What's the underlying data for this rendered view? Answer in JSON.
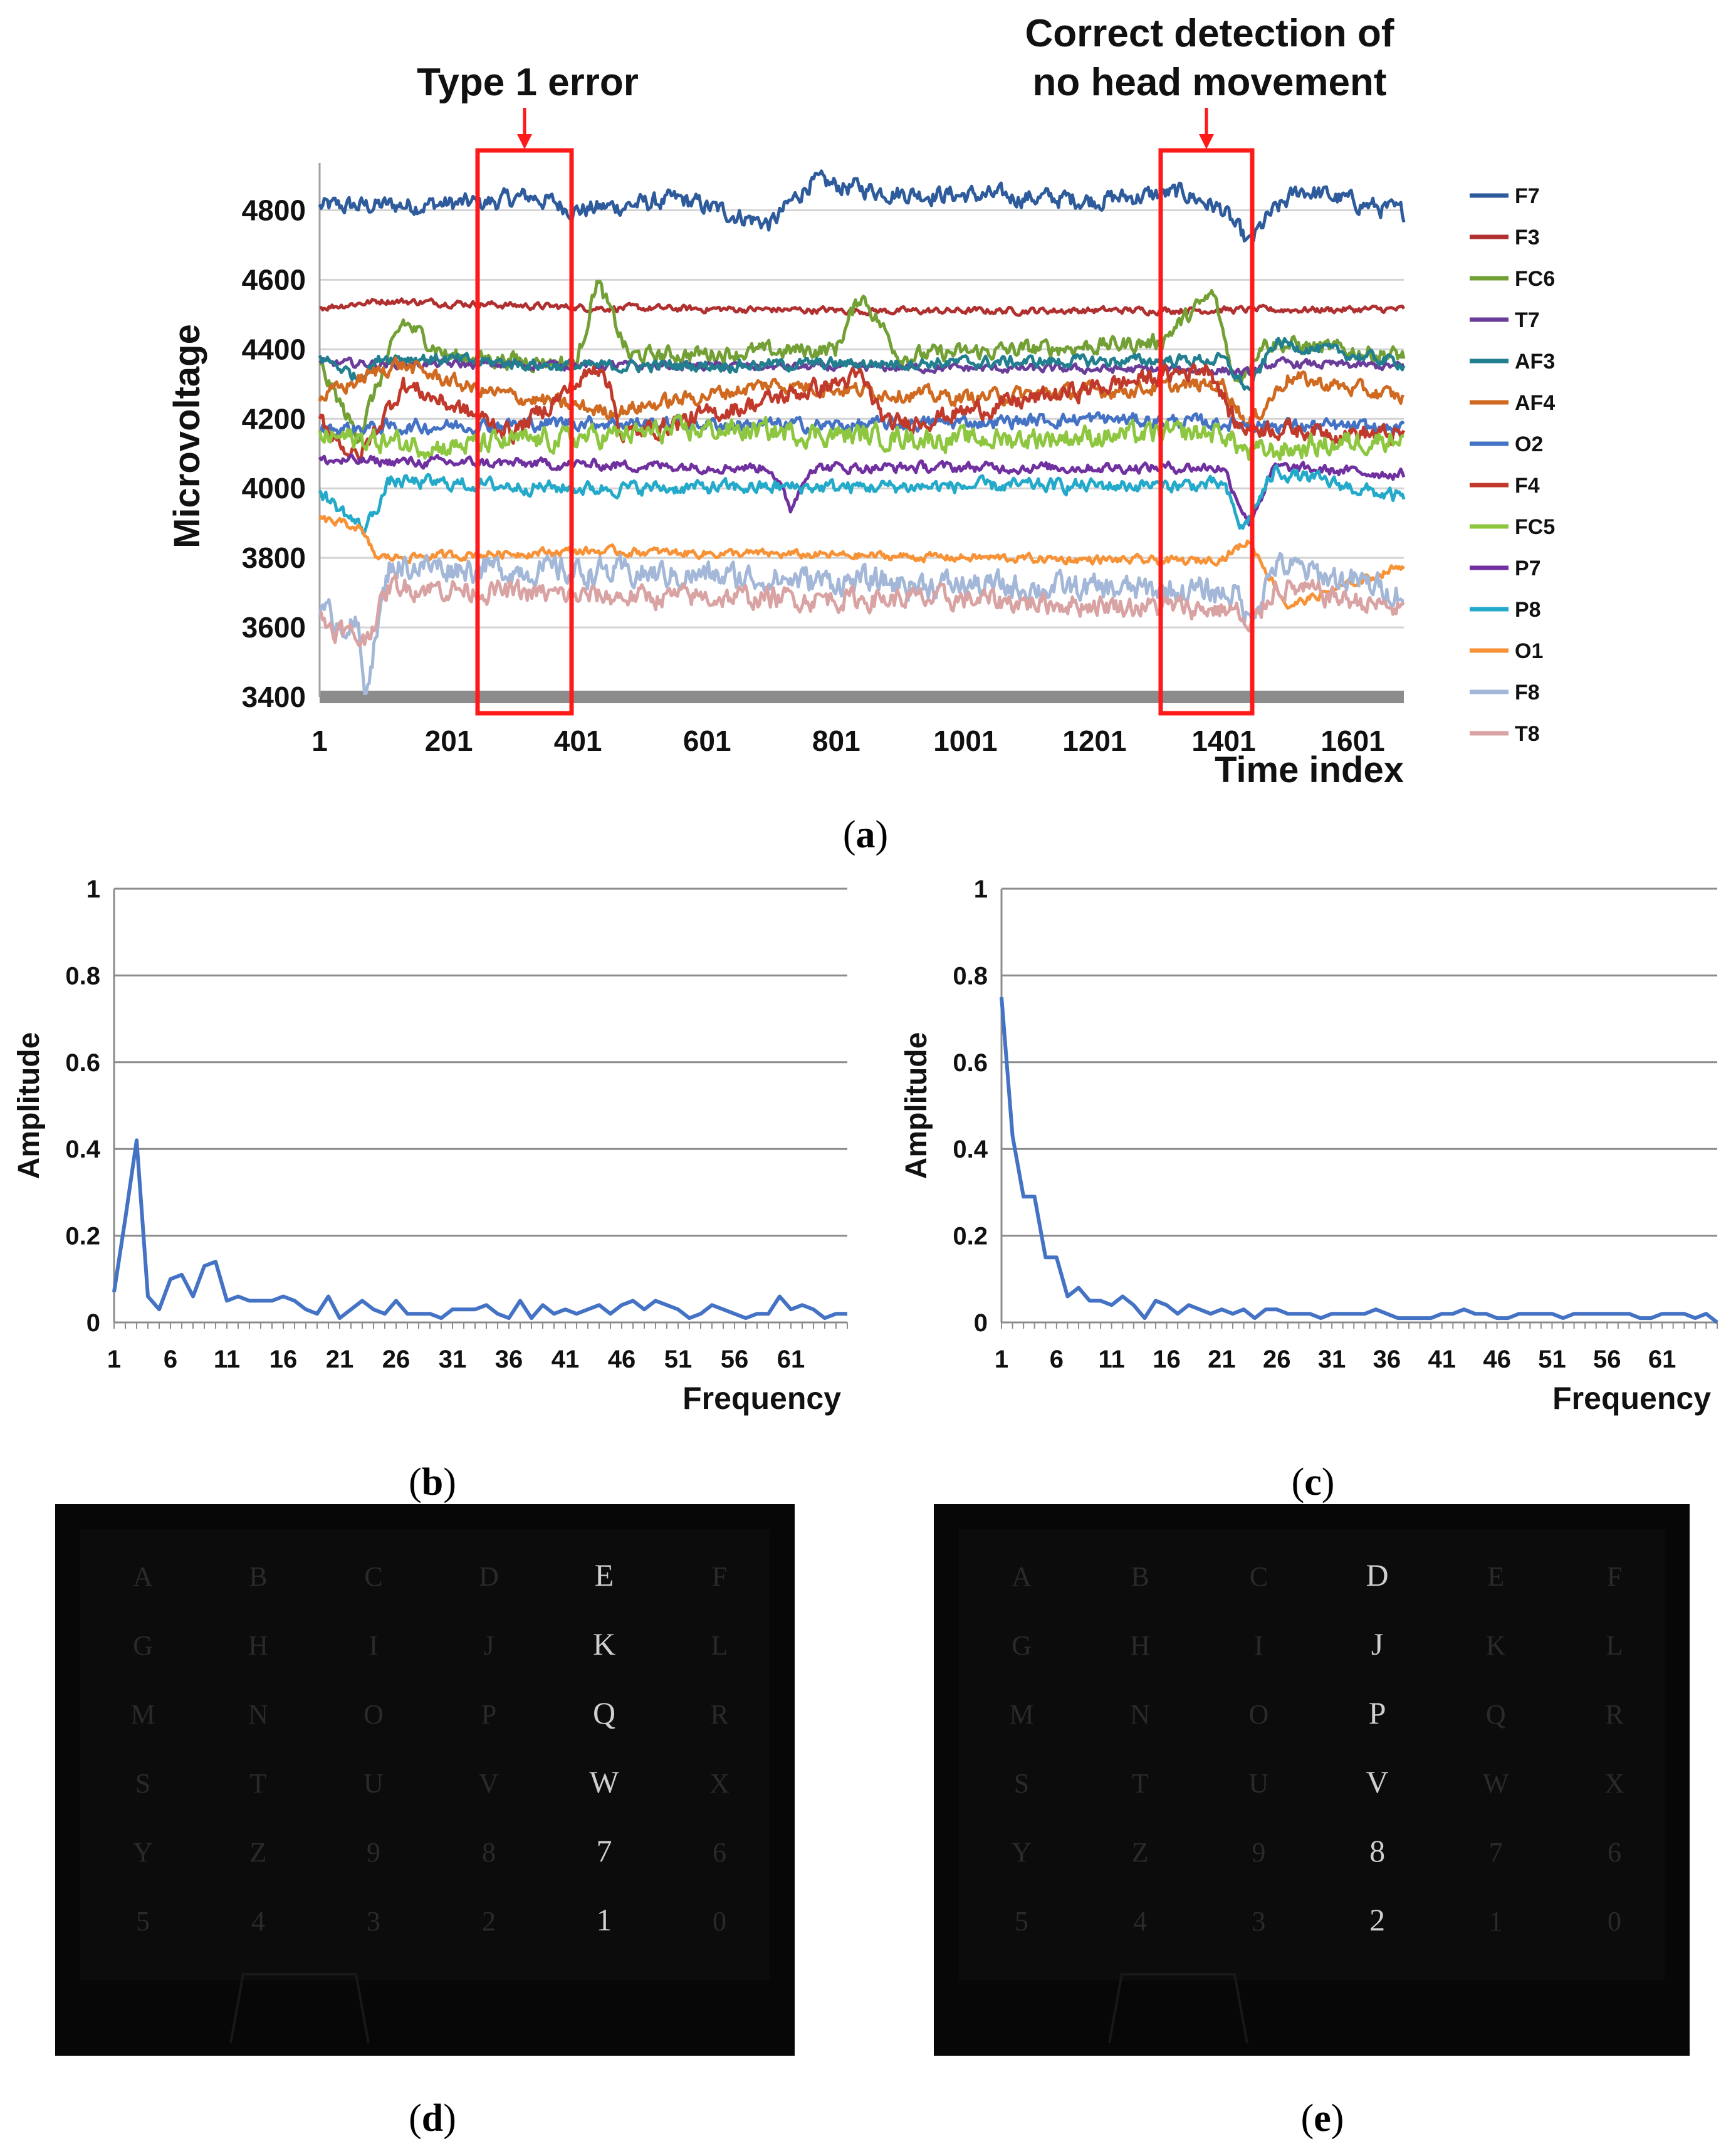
{
  "chart_data": [
    {
      "panel": "(a)",
      "type": "line",
      "xlabel": "Time index",
      "ylabel": "Microvoltage",
      "ylim": [
        3400,
        4900
      ],
      "xlim": [
        1,
        1680
      ],
      "xticks": [
        "1",
        "201",
        "401",
        "601",
        "801",
        "1001",
        "1201",
        "1401",
        "1601"
      ],
      "yticks": [
        "3400",
        "3600",
        "3800",
        "4000",
        "4200",
        "4400",
        "4600",
        "4800"
      ],
      "grid": true,
      "legend": "right",
      "annotations": [
        {
          "text": "Type 1 error",
          "x_range": [
            250,
            390
          ]
        },
        {
          "text_lines": [
            "Correct detection of",
            "no head movement"
          ],
          "x_range": [
            1300,
            1440
          ]
        }
      ],
      "series": [
        {
          "name": "F7",
          "color": "#2e5b9b",
          "base": 4820,
          "noise": 22,
          "x": [
            1,
            250,
            330,
            400,
            560,
            700,
            760,
            900,
            1200,
            1340,
            1400,
            1440,
            1470,
            1520,
            1680
          ],
          "y": [
            4810,
            4820,
            4840,
            4800,
            4830,
            4760,
            4880,
            4850,
            4830,
            4850,
            4800,
            4700,
            4780,
            4860,
            4790
          ]
        },
        {
          "name": "F3",
          "color": "#b03030",
          "base": 4520,
          "noise": 8,
          "x": [
            1,
            100,
            400,
            900,
            1680
          ],
          "y": [
            4520,
            4540,
            4520,
            4510,
            4515
          ]
        },
        {
          "name": "FC6",
          "color": "#72a035",
          "base": 4380,
          "noise": 20,
          "x": [
            1,
            60,
            130,
            200,
            400,
            430,
            480,
            800,
            840,
            900,
            1300,
            1385,
            1420,
            1460,
            1680
          ],
          "y": [
            4350,
            4150,
            4480,
            4380,
            4360,
            4600,
            4380,
            4400,
            4560,
            4380,
            4420,
            4560,
            4300,
            4420,
            4380
          ]
        },
        {
          "name": "T7",
          "color": "#6a3d9a",
          "base": 4350,
          "noise": 10,
          "x": [
            1,
            1400,
            1440,
            1480,
            1680
          ],
          "y": [
            4360,
            4340,
            4330,
            4360,
            4350
          ]
        },
        {
          "name": "AF3",
          "color": "#217f8f",
          "base": 4360,
          "noise": 14,
          "x": [
            1,
            60,
            100,
            400,
            1400,
            1440,
            1480,
            1680
          ],
          "y": [
            4380,
            4320,
            4380,
            4350,
            4370,
            4280,
            4420,
            4360
          ]
        },
        {
          "name": "AF4",
          "color": "#d06a20",
          "base": 4260,
          "noise": 18,
          "x": [
            1,
            120,
            250,
            450,
            700,
            1000,
            1400,
            1440,
            1500,
            1680
          ],
          "y": [
            4260,
            4360,
            4280,
            4220,
            4300,
            4260,
            4300,
            4180,
            4320,
            4260
          ]
        },
        {
          "name": "O2",
          "color": "#4472c4",
          "base": 4180,
          "noise": 16,
          "x": [
            1,
            400,
            800,
            1200,
            1680
          ],
          "y": [
            4170,
            4190,
            4180,
            4200,
            4170
          ]
        },
        {
          "name": "F4",
          "color": "#c0392b",
          "base": 4200,
          "noise": 22,
          "x": [
            1,
            60,
            130,
            300,
            440,
            470,
            840,
            880,
            1380,
            1420,
            1680
          ],
          "y": [
            4200,
            4080,
            4300,
            4160,
            4360,
            4150,
            4320,
            4180,
            4350,
            4180,
            4150
          ]
        },
        {
          "name": "FC5",
          "color": "#8dc63f",
          "base": 4150,
          "noise": 26,
          "x": [
            1,
            200,
            600,
            1000,
            1400,
            1440,
            1680
          ],
          "y": [
            4150,
            4120,
            4170,
            4140,
            4160,
            4100,
            4150
          ]
        },
        {
          "name": "P7",
          "color": "#7030a0",
          "base": 4060,
          "noise": 12,
          "x": [
            1,
            700,
            730,
            760,
            1400,
            1440,
            1480,
            1680
          ],
          "y": [
            4080,
            4060,
            3940,
            4060,
            4060,
            3900,
            4060,
            4040
          ]
        },
        {
          "name": "P8",
          "color": "#23a9c9",
          "base": 3990,
          "noise": 16,
          "x": [
            1,
            70,
            110,
            400,
            1400,
            1430,
            1480,
            1680
          ],
          "y": [
            3990,
            3880,
            4020,
            4000,
            4010,
            3880,
            4050,
            3970
          ]
        },
        {
          "name": "O1",
          "color": "#f79236",
          "base": 3790,
          "noise": 10,
          "x": [
            1,
            60,
            90,
            400,
            1350,
            1400,
            1440,
            1500,
            1680
          ],
          "y": [
            3910,
            3890,
            3800,
            3820,
            3790,
            3800,
            3850,
            3660,
            3780
          ]
        },
        {
          "name": "F8",
          "color": "#a3b7d8",
          "base": 3720,
          "noise": 32,
          "x": [
            1,
            60,
            70,
            110,
            400,
            1000,
            1420,
            1440,
            1480,
            1680
          ],
          "y": [
            3640,
            3600,
            3410,
            3780,
            3760,
            3720,
            3700,
            3620,
            3780,
            3700
          ]
        },
        {
          "name": "T8",
          "color": "#d9a3a3",
          "base": 3690,
          "noise": 26,
          "x": [
            1,
            70,
            110,
            400,
            1000,
            1420,
            1440,
            1480,
            1680
          ],
          "y": [
            3620,
            3560,
            3720,
            3690,
            3680,
            3650,
            3580,
            3720,
            3650
          ]
        }
      ]
    },
    {
      "panel": "(b)",
      "type": "line",
      "xlabel": "Frequency",
      "ylabel": "Amplitude",
      "ylim": [
        0,
        1
      ],
      "xticks": [
        "1",
        "6",
        "11",
        "16",
        "21",
        "26",
        "31",
        "36",
        "41",
        "46",
        "51",
        "56",
        "61"
      ],
      "yticks": [
        "0",
        "0.2",
        "0.4",
        "0.6",
        "0.8",
        "1"
      ],
      "series": [
        {
          "name": "",
          "color": "#4472c4",
          "values": [
            0.07,
            0.24,
            0.42,
            0.06,
            0.03,
            0.1,
            0.11,
            0.06,
            0.13,
            0.14,
            0.05,
            0.06,
            0.05,
            0.05,
            0.05,
            0.06,
            0.05,
            0.03,
            0.02,
            0.06,
            0.01,
            0.03,
            0.05,
            0.03,
            0.02,
            0.05,
            0.02,
            0.02,
            0.02,
            0.01,
            0.03,
            0.03,
            0.03,
            0.04,
            0.02,
            0.01,
            0.05,
            0.01,
            0.04,
            0.02,
            0.03,
            0.02,
            0.03,
            0.04,
            0.02,
            0.04,
            0.05,
            0.03,
            0.05,
            0.04,
            0.03,
            0.01,
            0.02,
            0.04,
            0.03,
            0.02,
            0.01,
            0.02,
            0.02,
            0.06,
            0.03,
            0.04,
            0.03,
            0.01,
            0.02,
            0.02
          ]
        }
      ]
    },
    {
      "panel": "(c)",
      "type": "line",
      "xlabel": "Frequency",
      "ylabel": "Amplitude",
      "ylim": [
        0,
        1
      ],
      "xticks": [
        "1",
        "6",
        "11",
        "16",
        "21",
        "26",
        "31",
        "36",
        "41",
        "46",
        "51",
        "56",
        "61"
      ],
      "yticks": [
        "0",
        "0.2",
        "0.4",
        "0.6",
        "0.8",
        "1"
      ],
      "series": [
        {
          "name": "",
          "color": "#4472c4",
          "values": [
            0.75,
            0.43,
            0.29,
            0.29,
            0.15,
            0.15,
            0.06,
            0.08,
            0.05,
            0.05,
            0.04,
            0.06,
            0.04,
            0.01,
            0.05,
            0.04,
            0.02,
            0.04,
            0.03,
            0.02,
            0.03,
            0.02,
            0.03,
            0.01,
            0.03,
            0.03,
            0.02,
            0.02,
            0.02,
            0.01,
            0.02,
            0.02,
            0.02,
            0.02,
            0.03,
            0.02,
            0.01,
            0.01,
            0.01,
            0.01,
            0.02,
            0.02,
            0.03,
            0.02,
            0.02,
            0.01,
            0.01,
            0.02,
            0.02,
            0.02,
            0.02,
            0.01,
            0.02,
            0.02,
            0.02,
            0.02,
            0.02,
            0.02,
            0.01,
            0.01,
            0.02,
            0.02,
            0.02,
            0.01,
            0.02,
            0.0
          ]
        }
      ]
    }
  ],
  "figures": {
    "a": {
      "label": "(a)",
      "letter": "a"
    },
    "b": {
      "label": "(b)",
      "letter": "b"
    },
    "c": {
      "label": "(c)",
      "letter": "c"
    },
    "d": {
      "label": "(d)",
      "letter": "d",
      "grid": [
        [
          "A",
          "B",
          "C",
          "D",
          "E",
          "F"
        ],
        [
          "G",
          "H",
          "I",
          "J",
          "K",
          "L"
        ],
        [
          "M",
          "N",
          "O",
          "P",
          "Q",
          "R"
        ],
        [
          "S",
          "T",
          "U",
          "V",
          "W",
          "X"
        ],
        [
          "Y",
          "Z",
          "9",
          "8",
          "7",
          "6"
        ],
        [
          "5",
          "4",
          "3",
          "2",
          "1",
          "0"
        ]
      ],
      "highlight_column": 4
    },
    "e": {
      "label": "(e)",
      "letter": "e",
      "grid": [
        [
          "A",
          "B",
          "C",
          "D",
          "E",
          "F"
        ],
        [
          "G",
          "H",
          "I",
          "J",
          "K",
          "L"
        ],
        [
          "M",
          "N",
          "O",
          "P",
          "Q",
          "R"
        ],
        [
          "S",
          "T",
          "U",
          "V",
          "W",
          "X"
        ],
        [
          "Y",
          "Z",
          "9",
          "8",
          "7",
          "6"
        ],
        [
          "5",
          "4",
          "3",
          "2",
          "1",
          "0"
        ]
      ],
      "highlight_column": 3
    }
  }
}
